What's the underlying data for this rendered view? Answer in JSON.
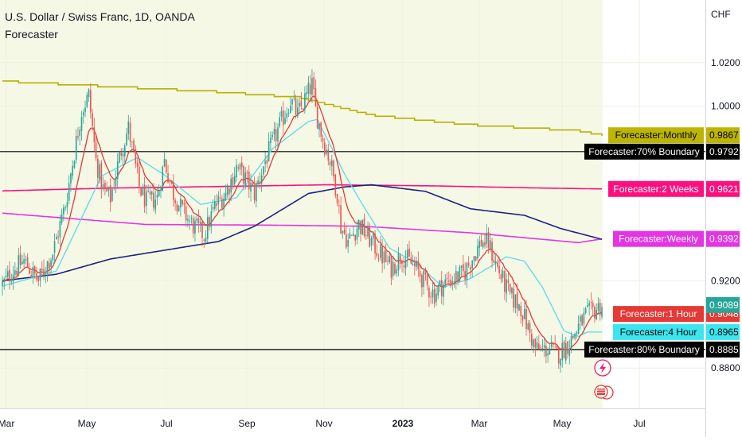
{
  "header": {
    "title": "U.S. Dollar / Swiss Franc, 1D, OANDA",
    "subtitle": "Forecaster"
  },
  "chart_data": {
    "type": "candlestick",
    "price_axis": {
      "unit": "CHF",
      "ticks": [
        "1.0200",
        "1.0000",
        "0.9200",
        "0.8800"
      ],
      "tick_values": [
        1.02,
        1.0,
        0.92,
        0.88
      ],
      "range": [
        0.8615,
        1.0487
      ]
    },
    "time_axis": {
      "ticks": [
        "Mar",
        "May",
        "Jul",
        "Sep",
        "Nov",
        "2023",
        "Mar",
        "May",
        "Jul"
      ],
      "bold": "2023"
    },
    "colors": {
      "up": "#26a69a",
      "down": "#ef5350",
      "background": "#f6f8e6",
      "background_white": "#ffffff",
      "monthly": "#b5b200",
      "weekly": "#e534e5",
      "two_weeks": "#ff0f7e",
      "four_hour": "#58dce6",
      "one_hour": "#e53935",
      "slow_ma": "#1a237e",
      "boundary": "#000000",
      "last_price": "#26a69a"
    },
    "levels": [
      {
        "label": "Forecaster:Monthly",
        "value": "0.9867",
        "color": "#bdb500",
        "text_color": "#000000"
      },
      {
        "label": "Forecaster:70% Boundary",
        "value": "0.9792",
        "color": "#000000",
        "text_color": "#ffffff"
      },
      {
        "label": "Forecaster:2 Weeks",
        "value": "0.9621",
        "color": "#ff0f7e",
        "text_color": "#ffffff"
      },
      {
        "label": "Forecaster:Weekly",
        "value": "0.9392",
        "color": "#e534e5",
        "text_color": "#ffffff"
      },
      {
        "label": "Forecaster:1 Hour",
        "value": "0.9048",
        "color": "#e53935",
        "text_color": "#ffffff"
      },
      {
        "label": "Forecaster:4 Hour",
        "value": "0.8965",
        "color": "#3ae6f0",
        "text_color": "#000000"
      },
      {
        "label": "Forecaster:80% Boundary",
        "value": "0.8885",
        "color": "#000000",
        "text_color": "#ffffff"
      }
    ],
    "last_price": "0.9089",
    "boundaries": {
      "upper": 0.9792,
      "lower": 0.8885
    },
    "anchors": [
      [
        0,
        0.918
      ],
      [
        6,
        0.925
      ],
      [
        12,
        0.929
      ],
      [
        20,
        0.92
      ],
      [
        28,
        0.933
      ],
      [
        35,
        0.955
      ],
      [
        44,
        0.998
      ],
      [
        48,
        1.005
      ],
      [
        52,
        0.975
      ],
      [
        56,
        0.962
      ],
      [
        60,
        0.958
      ],
      [
        66,
        0.98
      ],
      [
        70,
        0.99
      ],
      [
        76,
        0.963
      ],
      [
        80,
        0.956
      ],
      [
        86,
        0.958
      ],
      [
        90,
        0.975
      ],
      [
        95,
        0.96
      ],
      [
        100,
        0.952
      ],
      [
        105,
        0.946
      ],
      [
        112,
        0.941
      ],
      [
        118,
        0.954
      ],
      [
        124,
        0.96
      ],
      [
        130,
        0.972
      ],
      [
        134,
        0.968
      ],
      [
        140,
        0.96
      ],
      [
        146,
        0.975
      ],
      [
        150,
        0.983
      ],
      [
        156,
        0.995
      ],
      [
        160,
        1.003
      ],
      [
        164,
        0.996
      ],
      [
        168,
        1.003
      ],
      [
        172,
        1.01
      ],
      [
        174,
        0.998
      ],
      [
        178,
        0.985
      ],
      [
        182,
        0.975
      ],
      [
        186,
        0.96
      ],
      [
        188,
        0.945
      ],
      [
        192,
        0.938
      ],
      [
        198,
        0.946
      ],
      [
        204,
        0.939
      ],
      [
        210,
        0.932
      ],
      [
        216,
        0.926
      ],
      [
        222,
        0.932
      ],
      [
        228,
        0.927
      ],
      [
        232,
        0.923
      ],
      [
        236,
        0.917
      ],
      [
        240,
        0.914
      ],
      [
        244,
        0.918
      ],
      [
        250,
        0.921
      ],
      [
        256,
        0.923
      ],
      [
        262,
        0.932
      ],
      [
        266,
        0.938
      ],
      [
        270,
        0.937
      ],
      [
        274,
        0.928
      ],
      [
        278,
        0.92
      ],
      [
        282,
        0.913
      ],
      [
        288,
        0.908
      ],
      [
        292,
        0.898
      ],
      [
        296,
        0.889
      ],
      [
        300,
        0.888
      ],
      [
        304,
        0.889
      ],
      [
        308,
        0.886
      ],
      [
        312,
        0.889
      ],
      [
        316,
        0.893
      ],
      [
        320,
        0.899
      ],
      [
        324,
        0.904
      ],
      [
        328,
        0.906
      ],
      [
        333,
        0.909
      ]
    ],
    "ma_monthly": [
      [
        0,
        1.0115
      ],
      [
        120,
        1.0066
      ],
      [
        165,
        1.004
      ],
      [
        205,
        0.996
      ],
      [
        260,
        0.9915
      ],
      [
        320,
        0.9888
      ],
      [
        333,
        0.9867
      ]
    ],
    "ma_weekly": [
      [
        0,
        0.951
      ],
      [
        80,
        0.9458
      ],
      [
        150,
        0.9455
      ],
      [
        200,
        0.945
      ],
      [
        260,
        0.942
      ],
      [
        320,
        0.9375
      ],
      [
        333,
        0.9392
      ]
    ],
    "ma_two_weeks": [
      [
        0,
        0.9612
      ],
      [
        60,
        0.9625
      ],
      [
        120,
        0.9632
      ],
      [
        180,
        0.964
      ],
      [
        240,
        0.9635
      ],
      [
        300,
        0.9625
      ],
      [
        333,
        0.9621
      ]
    ],
    "ma_slow": [
      [
        0,
        0.92
      ],
      [
        30,
        0.923
      ],
      [
        60,
        0.93
      ],
      [
        120,
        0.938
      ],
      [
        140,
        0.945
      ],
      [
        170,
        0.96
      ],
      [
        190,
        0.963
      ],
      [
        205,
        0.964
      ],
      [
        235,
        0.961
      ],
      [
        260,
        0.953
      ],
      [
        290,
        0.95
      ],
      [
        310,
        0.944
      ],
      [
        333,
        0.939
      ]
    ],
    "ma_four_hour": [
      [
        0,
        0.9175
      ],
      [
        30,
        0.9245
      ],
      [
        45,
        0.9505
      ],
      [
        55,
        0.968
      ],
      [
        75,
        0.9765
      ],
      [
        90,
        0.9685
      ],
      [
        110,
        0.955
      ],
      [
        130,
        0.958
      ],
      [
        150,
        0.9805
      ],
      [
        170,
        0.993
      ],
      [
        175,
        0.994
      ],
      [
        190,
        0.969
      ],
      [
        200,
        0.955
      ],
      [
        215,
        0.935
      ],
      [
        230,
        0.928
      ],
      [
        245,
        0.917
      ],
      [
        260,
        0.921
      ],
      [
        280,
        0.931
      ],
      [
        290,
        0.929
      ],
      [
        300,
        0.917
      ],
      [
        312,
        0.897
      ],
      [
        320,
        0.8945
      ],
      [
        325,
        0.8965
      ],
      [
        333,
        0.8965
      ]
    ]
  }
}
